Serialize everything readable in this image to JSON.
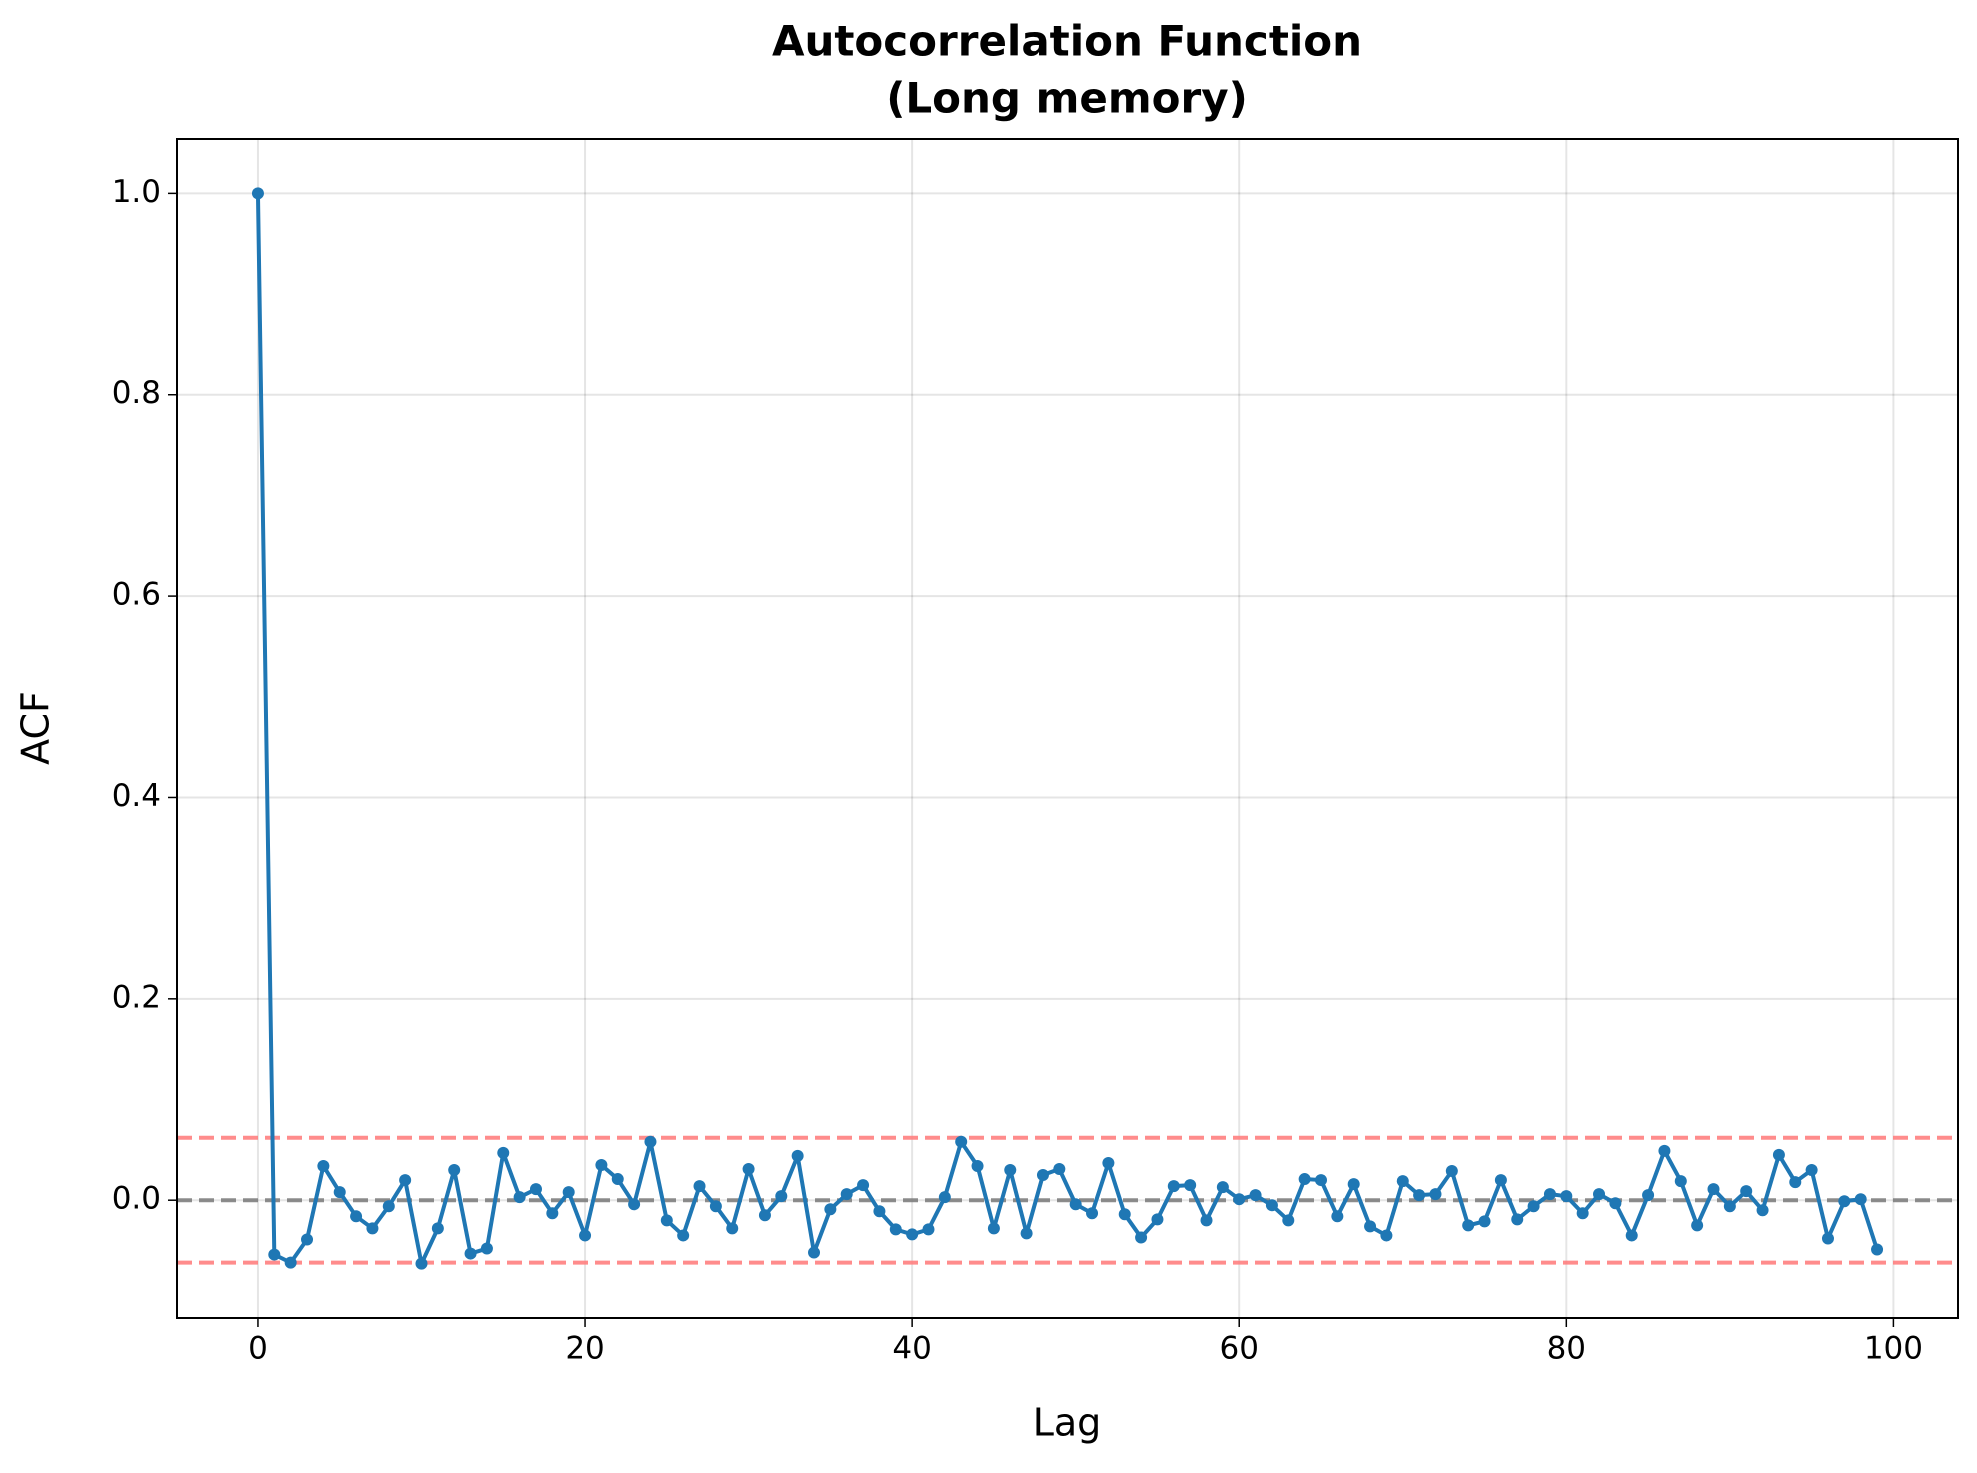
{
  "chart_data": {
    "type": "line",
    "title": [
      "Autocorrelation Function",
      "(Long memory)"
    ],
    "xlabel": "Lag",
    "ylabel": "ACF",
    "x": [
      0,
      1,
      2,
      3,
      4,
      5,
      6,
      7,
      8,
      9,
      10,
      11,
      12,
      13,
      14,
      15,
      16,
      17,
      18,
      19,
      20,
      21,
      22,
      23,
      24,
      25,
      26,
      27,
      28,
      29,
      30,
      31,
      32,
      33,
      34,
      35,
      36,
      37,
      38,
      39,
      40,
      41,
      42,
      43,
      44,
      45,
      46,
      47,
      48,
      49,
      50,
      51,
      52,
      53,
      54,
      55,
      56,
      57,
      58,
      59,
      60,
      61,
      62,
      63,
      64,
      65,
      66,
      67,
      68,
      69,
      70,
      71,
      72,
      73,
      74,
      75,
      76,
      77,
      78,
      79,
      80,
      81,
      82,
      83,
      84,
      85,
      86,
      87,
      88,
      89,
      90,
      91,
      92,
      93,
      94,
      95,
      96,
      97,
      98,
      99
    ],
    "series": [
      {
        "color": "#1f77b4",
        "values": [
          1.0,
          -0.054,
          -0.062,
          -0.039,
          0.034,
          0.008,
          -0.016,
          -0.028,
          -0.006,
          0.02,
          -0.063,
          -0.028,
          0.03,
          -0.053,
          -0.048,
          0.047,
          0.003,
          0.011,
          -0.013,
          0.008,
          -0.035,
          0.035,
          0.021,
          -0.004,
          0.058,
          -0.02,
          -0.035,
          0.014,
          -0.006,
          -0.028,
          0.031,
          -0.015,
          0.004,
          0.044,
          -0.052,
          -0.009,
          0.006,
          0.015,
          -0.011,
          -0.029,
          -0.034,
          -0.029,
          0.003,
          0.058,
          0.034,
          -0.028,
          0.03,
          -0.033,
          0.025,
          0.031,
          -0.004,
          -0.013,
          0.037,
          -0.014,
          -0.037,
          -0.019,
          0.014,
          0.015,
          -0.02,
          0.013,
          0.001,
          0.005,
          -0.005,
          -0.02,
          0.021,
          0.02,
          -0.016,
          0.016,
          -0.026,
          -0.035,
          0.019,
          0.005,
          0.006,
          0.029,
          -0.025,
          -0.021,
          0.02,
          -0.019,
          -0.006,
          0.006,
          0.004,
          -0.013,
          0.006,
          -0.003,
          -0.035,
          0.005,
          0.049,
          0.019,
          -0.025,
          0.011,
          -0.006,
          0.009,
          -0.01,
          0.045,
          0.018,
          0.03,
          -0.038,
          -0.001,
          0.001,
          -0.049
        ]
      }
    ],
    "hlines": [
      {
        "y": 0,
        "color": "#808080"
      },
      {
        "y": 0.062,
        "color": "#ff8080"
      },
      {
        "y": -0.062,
        "color": "#ff8080"
      }
    ],
    "xlim": [
      -4.95,
      103.95
    ],
    "ylim": [
      -0.117,
      1.054
    ],
    "xticks": [
      0,
      20,
      40,
      60,
      80,
      100
    ],
    "yticks": [
      {
        "value": 0,
        "label": "0.0"
      },
      {
        "value": 0.2,
        "label": "0.2"
      },
      {
        "value": 0.4,
        "label": "0.4"
      },
      {
        "value": 0.6,
        "label": "0.6"
      },
      {
        "value": 0.8,
        "label": "0.8"
      },
      {
        "value": 1,
        "label": "1.0"
      }
    ],
    "grid": true
  }
}
